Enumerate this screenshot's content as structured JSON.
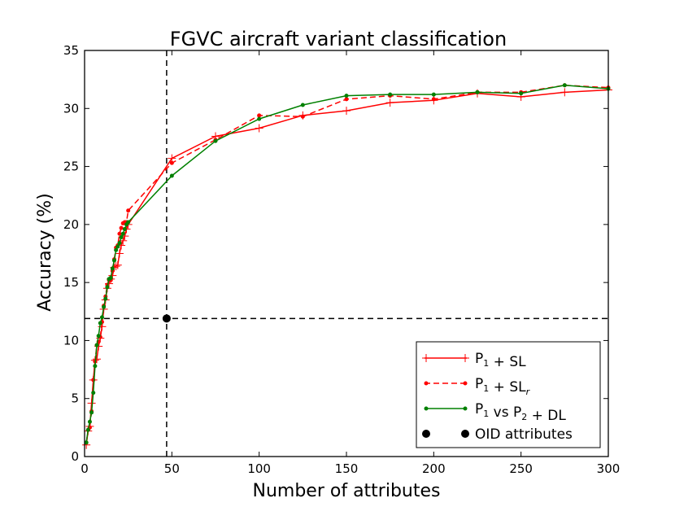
{
  "chart_data": {
    "type": "line",
    "title": "FGVC aircraft variant classification",
    "xlabel": "Number of attributes",
    "ylabel": "Accuracy (%)",
    "xlim": [
      0,
      300
    ],
    "ylim": [
      0,
      35
    ],
    "xticks": [
      0,
      50,
      100,
      150,
      200,
      250,
      300
    ],
    "yticks": [
      0,
      5,
      10,
      15,
      20,
      25,
      30,
      35
    ],
    "grid": false,
    "legend_position": "lower-right",
    "series": [
      {
        "name": "P1 + SL",
        "legend_main": "P",
        "legend_sub": "1",
        "legend_rest": " + SL",
        "legend_rest_sub": "",
        "color": "#ff0000",
        "linestyle": "solid",
        "marker": "plus",
        "x": [
          1,
          2,
          3,
          4,
          5,
          6,
          7,
          8,
          9,
          10,
          11,
          12,
          13,
          14,
          15,
          16,
          17,
          18,
          19,
          20,
          21,
          22,
          23,
          24,
          25,
          50,
          75,
          100,
          125,
          150,
          175,
          200,
          225,
          250,
          275,
          300
        ],
        "y": [
          1.0,
          2.2,
          2.6,
          4.6,
          6.6,
          8.3,
          8.4,
          9.5,
          10.2,
          11.2,
          12.7,
          13.5,
          14.5,
          14.9,
          15.3,
          15.6,
          16.3,
          16.4,
          16.5,
          17.5,
          18.2,
          18.6,
          19.0,
          19.6,
          20.0,
          25.7,
          27.6,
          28.3,
          29.4,
          29.8,
          30.5,
          30.7,
          31.3,
          31.0,
          31.4,
          31.6
        ]
      },
      {
        "name": "P1 + SLr",
        "legend_main": "P",
        "legend_sub": "1",
        "legend_rest": " + SL",
        "legend_rest_sub": "r",
        "color": "#ff0000",
        "linestyle": "dashed",
        "marker": "dot",
        "x": [
          1,
          2,
          3,
          4,
          5,
          6,
          7,
          8,
          9,
          10,
          11,
          12,
          13,
          14,
          15,
          16,
          17,
          18,
          19,
          20,
          21,
          22,
          23,
          24,
          25,
          50,
          75,
          100,
          125,
          150,
          175,
          200,
          225,
          250,
          275,
          300
        ],
        "y": [
          1.2,
          2.3,
          2.5,
          3.9,
          6.6,
          8.2,
          9.6,
          9.9,
          10.3,
          11.6,
          13.0,
          13.8,
          14.8,
          15.2,
          15.2,
          16.0,
          17.0,
          18.0,
          18.2,
          19.2,
          19.7,
          20.1,
          20.2,
          20.2,
          21.2,
          25.3,
          27.3,
          29.4,
          29.3,
          30.8,
          31.1,
          30.8,
          31.4,
          31.4,
          32.0,
          31.8
        ]
      },
      {
        "name": "P1 vs P2 + DL",
        "legend_main": "P",
        "legend_sub": "1",
        "legend_rest": " vs P",
        "legend_rest_sub": "2",
        "legend_tail": " + DL",
        "color": "#008000",
        "linestyle": "solid",
        "marker": "dot",
        "x": [
          1,
          2,
          3,
          4,
          5,
          6,
          7,
          8,
          9,
          10,
          11,
          12,
          13,
          14,
          15,
          16,
          17,
          18,
          19,
          20,
          21,
          22,
          23,
          24,
          25,
          50,
          75,
          100,
          125,
          150,
          175,
          200,
          225,
          250,
          275,
          300
        ],
        "y": [
          1.2,
          2.3,
          3.0,
          3.8,
          5.5,
          7.8,
          9.6,
          10.4,
          11.5,
          12.0,
          12.9,
          13.6,
          14.6,
          15.3,
          15.4,
          16.2,
          16.9,
          17.8,
          18.1,
          18.4,
          18.9,
          19.2,
          19.6,
          20.0,
          20.2,
          24.2,
          27.2,
          29.1,
          30.3,
          31.1,
          31.2,
          31.2,
          31.4,
          31.3,
          32.0,
          31.7
        ]
      },
      {
        "name": "OID attributes",
        "legend_main": "OID attributes",
        "color": "#000000",
        "linestyle": "none",
        "marker": "bigdot",
        "x": [
          47
        ],
        "y": [
          11.9
        ]
      }
    ],
    "reference_lines": {
      "vertical_x": 47,
      "horizontal_y": 11.9,
      "style": "dashed",
      "color": "#000000"
    }
  }
}
